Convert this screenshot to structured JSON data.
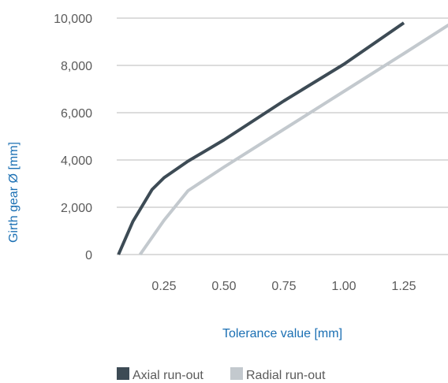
{
  "chart_data": {
    "type": "line",
    "xlabel": "Tolerance value [mm]",
    "ylabel": "Girth gear Ø [mm]",
    "xlim": [
      0,
      1.45
    ],
    "ylim": [
      0,
      10000
    ],
    "x_ticks": [
      "0.25",
      "0.50",
      "0.75",
      "1.00",
      "1.25"
    ],
    "x_tick_values": [
      0.25,
      0.5,
      0.75,
      1.0,
      1.25
    ],
    "y_ticks": [
      "0",
      "2,000",
      "4,000",
      "6,000",
      "8,000",
      "10,000"
    ],
    "y_tick_values": [
      0,
      2000,
      4000,
      6000,
      8000,
      10000
    ],
    "grid": "horizontal",
    "legend_position": "bottom",
    "series": [
      {
        "name": "Axial run-out",
        "color": "#3d4b55",
        "x": [
          0.06,
          0.12,
          0.2,
          0.25,
          0.35,
          0.5,
          0.75,
          1.0,
          1.25
        ],
        "y": [
          0,
          1400,
          2750,
          3250,
          3950,
          4850,
          6500,
          8050,
          9800
        ]
      },
      {
        "name": "Radial run-out",
        "color": "#c3c9ce",
        "x": [
          0.15,
          0.25,
          0.35,
          0.5,
          0.75,
          1.0,
          1.25,
          1.45
        ],
        "y": [
          0,
          1450,
          2700,
          3700,
          5300,
          6900,
          8500,
          9800
        ]
      }
    ]
  }
}
